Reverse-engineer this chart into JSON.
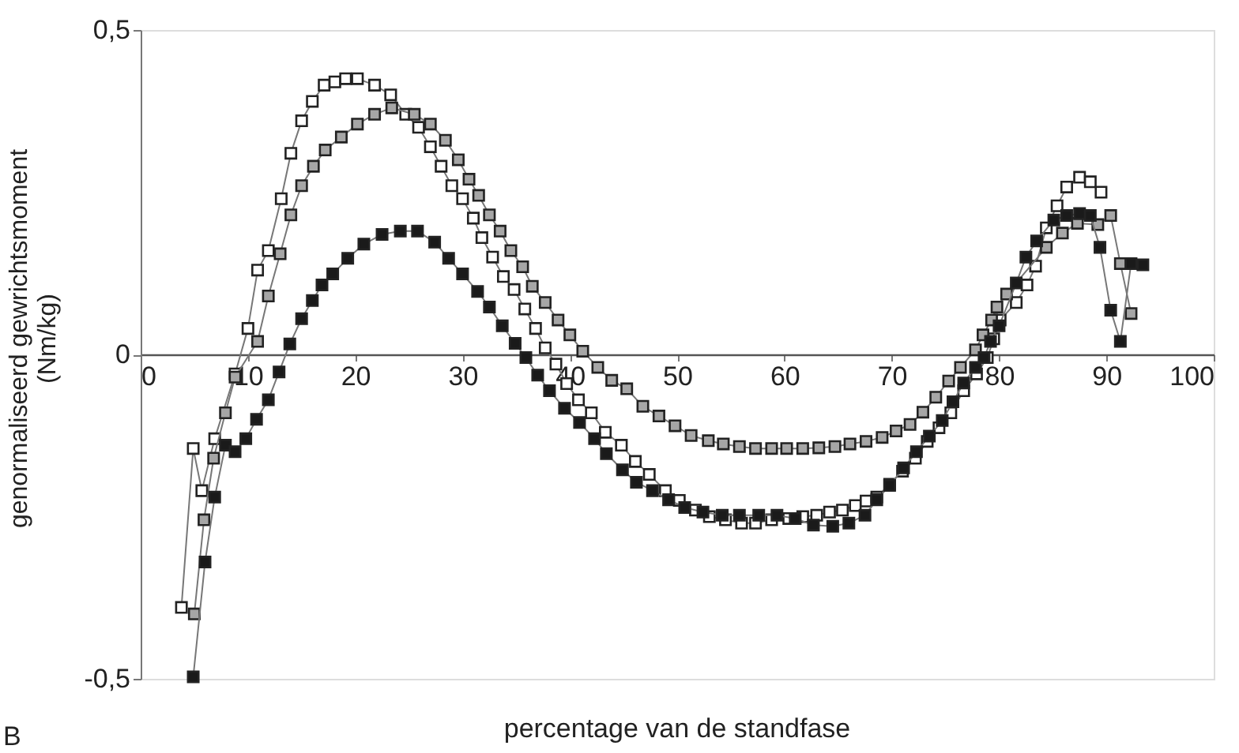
{
  "chart_data": {
    "type": "line",
    "marker": "square",
    "xlabel": "percentage van de standfase",
    "ylabel": "genormaliseerd gewrichtsmoment\n(Nm/kg)",
    "xlim": [
      0,
      100
    ],
    "xticks": [
      0,
      10,
      20,
      30,
      40,
      50,
      60,
      70,
      80,
      90,
      100
    ],
    "ylim": [
      -0.5,
      0.5
    ],
    "yticks": [
      {
        "value": -0.5,
        "label": "-0,5"
      },
      0,
      {
        "value": 0.5,
        "label": "0,5"
      }
    ],
    "grid": false,
    "annotations": [
      "B"
    ],
    "series": [
      {
        "color": "#ffffff",
        "x": [
          3.8,
          4.9,
          5.7,
          6.9,
          8.8,
          10,
          10.9,
          11.9,
          13.1,
          14,
          15,
          16,
          17.1,
          18.1,
          19.1,
          20.2,
          21.8,
          23.3,
          24.7,
          25.9,
          27,
          28,
          29,
          30,
          31,
          31.8,
          32.8,
          33.8,
          34.8,
          35.8,
          36.8,
          37.7,
          38.7,
          39.7,
          40.8,
          42,
          43.3,
          44.8,
          46.1,
          47.4,
          48.9,
          50.2,
          51.7,
          53,
          54.5,
          56,
          57.3,
          58.8,
          60.4,
          61.7,
          63,
          64.2,
          65.4,
          66.6,
          67.6,
          68.6,
          69.8,
          71,
          72.2,
          73.3,
          74.4,
          75.5,
          76.7,
          77.9,
          78.9,
          79.5,
          80.1,
          81.6,
          82.6,
          83.4,
          84.4,
          85.4,
          86.3,
          87.5,
          88.5,
          89.5
        ],
        "values": [
          -0.39,
          -0.145,
          -0.21,
          -0.13,
          -0.03,
          0.04,
          0.13,
          0.16,
          0.24,
          0.31,
          0.36,
          0.39,
          0.415,
          0.42,
          0.425,
          0.425,
          0.415,
          0.4,
          0.37,
          0.35,
          0.32,
          0.29,
          0.26,
          0.24,
          0.21,
          0.18,
          0.15,
          0.12,
          0.1,
          0.07,
          0.04,
          0.01,
          -0.015,
          -0.045,
          -0.07,
          -0.09,
          -0.12,
          -0.14,
          -0.165,
          -0.185,
          -0.21,
          -0.225,
          -0.24,
          -0.25,
          -0.255,
          -0.26,
          -0.26,
          -0.255,
          -0.253,
          -0.25,
          -0.248,
          -0.243,
          -0.24,
          -0.233,
          -0.226,
          -0.22,
          -0.2,
          -0.18,
          -0.16,
          -0.134,
          -0.113,
          -0.09,
          -0.056,
          -0.03,
          -0.005,
          0.024,
          0.053,
          0.08,
          0.107,
          0.136,
          0.195,
          0.229,
          0.258,
          0.273,
          0.266,
          0.25
        ]
      },
      {
        "color": "#a6a6a6",
        "x": [
          5,
          5.9,
          6.8,
          7.9,
          8.8,
          10.9,
          11.9,
          13,
          14,
          15,
          16.1,
          17.2,
          18.7,
          20.2,
          21.8,
          23.4,
          25.5,
          27,
          28.4,
          29.6,
          30.6,
          31.5,
          32.5,
          33.5,
          34.5,
          35.6,
          36.5,
          37.7,
          38.9,
          40,
          41.2,
          42.6,
          43.9,
          45.3,
          46.8,
          48.3,
          49.8,
          51.3,
          52.9,
          54.3,
          55.8,
          57.3,
          58.8,
          60.2,
          61.7,
          63.2,
          64.7,
          66.1,
          67.6,
          69.1,
          70.4,
          71.7,
          72.9,
          74.1,
          75.3,
          76.4,
          77.8,
          78.5,
          79.3,
          79.8,
          80.7,
          84.4,
          85.9,
          87.3,
          89.2,
          90.4,
          91.3,
          92.3
        ],
        "values": [
          -0.4,
          -0.255,
          -0.16,
          -0.09,
          -0.035,
          0.02,
          0.09,
          0.155,
          0.215,
          0.26,
          0.29,
          0.315,
          0.335,
          0.355,
          0.37,
          0.38,
          0.37,
          0.355,
          0.33,
          0.3,
          0.27,
          0.245,
          0.215,
          0.19,
          0.16,
          0.135,
          0.105,
          0.08,
          0.053,
          0.03,
          0.005,
          -0.02,
          -0.04,
          -0.053,
          -0.08,
          -0.095,
          -0.11,
          -0.125,
          -0.133,
          -0.138,
          -0.142,
          -0.145,
          -0.145,
          -0.145,
          -0.145,
          -0.144,
          -0.142,
          -0.138,
          -0.134,
          -0.128,
          -0.118,
          -0.108,
          -0.089,
          -0.066,
          -0.041,
          -0.02,
          0.007,
          0.03,
          0.053,
          0.073,
          0.093,
          0.165,
          0.187,
          0.202,
          0.2,
          0.214,
          0.14,
          0.063
        ]
      },
      {
        "color": "#1a1a1a",
        "x": [
          4.9,
          6,
          6.9,
          7.9,
          8.8,
          9.8,
          10.8,
          11.9,
          12.9,
          13.9,
          15,
          16,
          16.9,
          17.9,
          19.3,
          20.8,
          22.5,
          24.2,
          25.8,
          27.4,
          28.7,
          30,
          31.4,
          32.5,
          33.7,
          34.9,
          35.9,
          37,
          38.1,
          39.5,
          40.9,
          42.3,
          43.4,
          44.9,
          46.2,
          47.7,
          49.2,
          50.7,
          52.4,
          54.2,
          55.8,
          57.6,
          59.3,
          61,
          62.7,
          64.5,
          66,
          67.5,
          68.6,
          69.8,
          71.1,
          72.3,
          73.5,
          74.7,
          75.7,
          76.7,
          77.8,
          78.6,
          79.2,
          80,
          81.6,
          82.5,
          83.5,
          85.1,
          86.3,
          87.5,
          88.5,
          89.4,
          90.4,
          91.3,
          92.3,
          93.4
        ],
        "values": [
          -0.497,
          -0.32,
          -0.22,
          -0.14,
          -0.15,
          -0.13,
          -0.1,
          -0.07,
          -0.027,
          0.016,
          0.055,
          0.083,
          0.107,
          0.124,
          0.148,
          0.17,
          0.185,
          0.19,
          0.19,
          0.173,
          0.148,
          0.124,
          0.097,
          0.073,
          0.044,
          0.017,
          -0.005,
          -0.032,
          -0.056,
          -0.083,
          -0.105,
          -0.13,
          -0.153,
          -0.178,
          -0.197,
          -0.21,
          -0.224,
          -0.236,
          -0.243,
          -0.248,
          -0.248,
          -0.248,
          -0.248,
          -0.253,
          -0.263,
          -0.265,
          -0.26,
          -0.248,
          -0.224,
          -0.202,
          -0.175,
          -0.15,
          -0.126,
          -0.102,
          -0.073,
          -0.044,
          -0.02,
          -0.005,
          0.02,
          0.044,
          0.11,
          0.15,
          0.175,
          0.207,
          0.214,
          0.217,
          0.214,
          0.165,
          0.068,
          0.02,
          0.14,
          0.138
        ]
      }
    ]
  }
}
